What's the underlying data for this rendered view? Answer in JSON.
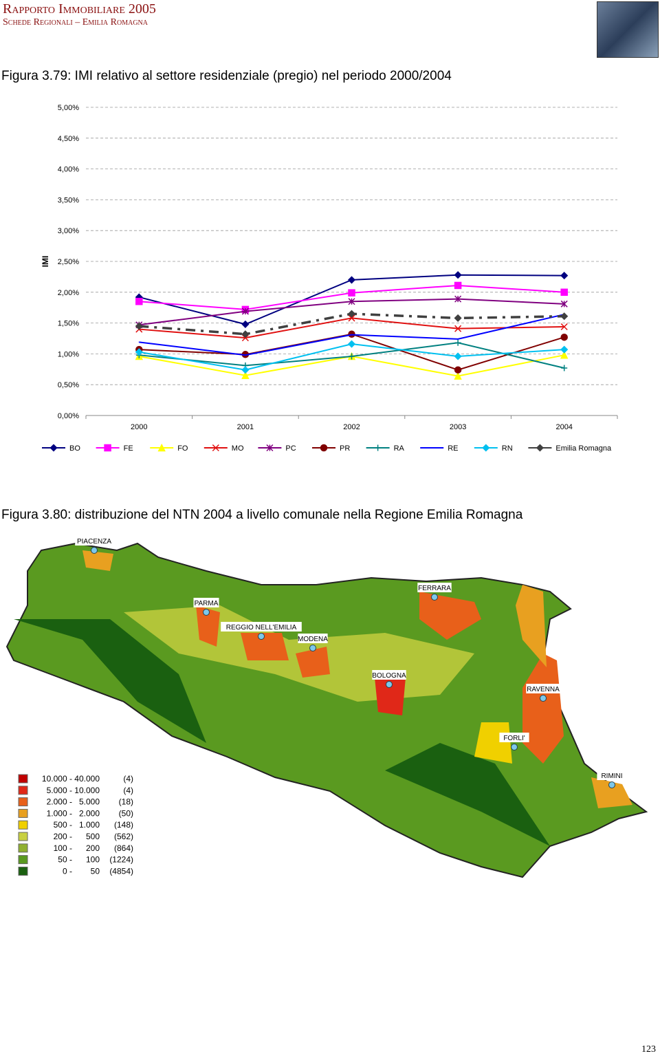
{
  "header": {
    "title": "Rapporto Immobiliare 2005",
    "subtitle": "Schede Regionali – Emilia Romagna"
  },
  "figure1": {
    "caption": "Figura 3.79: IMI relativo al settore residenziale (pregio) nel periodo 2000/2004"
  },
  "chart_data": {
    "type": "line",
    "y_label": "IMI",
    "categories": [
      "2000",
      "2001",
      "2002",
      "2003",
      "2004"
    ],
    "ylim": [
      0,
      5
    ],
    "yticks": [
      {
        "value": 0,
        "label": "0,00%"
      },
      {
        "value": 0.5,
        "label": "0,50%"
      },
      {
        "value": 1,
        "label": "1,00%"
      },
      {
        "value": 1.5,
        "label": "1,50%"
      },
      {
        "value": 2,
        "label": "2,00%"
      },
      {
        "value": 2.5,
        "label": "2,50%"
      },
      {
        "value": 3,
        "label": "3,00%"
      },
      {
        "value": 3.5,
        "label": "3,50%"
      },
      {
        "value": 4,
        "label": "4,00%"
      },
      {
        "value": 4.5,
        "label": "4,50%"
      },
      {
        "value": 5,
        "label": "5,00%"
      }
    ],
    "grid": true,
    "series": [
      {
        "name": "BO",
        "color": "#000080",
        "marker": "diamond",
        "values": [
          1.92,
          1.48,
          2.2,
          2.28,
          2.27
        ]
      },
      {
        "name": "FE",
        "color": "#ff00ff",
        "marker": "square",
        "values": [
          1.85,
          1.72,
          1.99,
          2.11,
          2.0
        ]
      },
      {
        "name": "FO",
        "color": "#ffff00",
        "marker": "triangle",
        "values": [
          0.96,
          0.65,
          0.96,
          0.64,
          0.98
        ]
      },
      {
        "name": "MO",
        "color": "#e01010",
        "marker": "x",
        "values": [
          1.4,
          1.26,
          1.58,
          1.41,
          1.44
        ]
      },
      {
        "name": "PC",
        "color": "#800080",
        "marker": "star",
        "values": [
          1.47,
          1.69,
          1.85,
          1.89,
          1.81
        ]
      },
      {
        "name": "PR",
        "color": "#800000",
        "marker": "circle",
        "values": [
          1.07,
          0.99,
          1.32,
          0.74,
          1.27
        ]
      },
      {
        "name": "RA",
        "color": "#008080",
        "marker": "plus",
        "values": [
          0.98,
          0.81,
          0.96,
          1.18,
          0.77
        ]
      },
      {
        "name": "RE",
        "color": "#0000ff",
        "marker": "none",
        "values": [
          1.19,
          0.98,
          1.31,
          1.24,
          1.64
        ]
      },
      {
        "name": "RN",
        "color": "#00c0f0",
        "marker": "diamond",
        "values": [
          1.03,
          0.74,
          1.16,
          0.96,
          1.07
        ]
      },
      {
        "name": "Emilia Romagna",
        "color": "#404040",
        "marker": "diamond",
        "dashed": true,
        "values": [
          1.45,
          1.32,
          1.65,
          1.58,
          1.61
        ]
      }
    ]
  },
  "figure2": {
    "caption": "Figura 3.80: distribuzione del NTN 2004 a livello comunale nella Regione Emilia Romagna",
    "cities": [
      "PIACENZA",
      "PARMA",
      "REGGIO NELL'EMILIA",
      "MODENA",
      "BOLOGNA",
      "FERRARA",
      "RAVENNA",
      "FORLI'",
      "RIMINI"
    ],
    "legend": [
      {
        "range": "10.000 - 40.000",
        "count": "(4)",
        "color": "#c00000"
      },
      {
        "range": "5.000 - 10.000",
        "count": "(4)",
        "color": "#e02818"
      },
      {
        "range": "2.000 -   5.000",
        "count": "(18)",
        "color": "#e8601a"
      },
      {
        "range": "1.000 -   2.000",
        "count": "(50)",
        "color": "#e8a020"
      },
      {
        "range": "500 -   1.000",
        "count": "(148)",
        "color": "#f0d000"
      },
      {
        "range": "200 -      500",
        "count": "(562)",
        "color": "#c8d040"
      },
      {
        "range": "100 -      200",
        "count": "(864)",
        "color": "#90b030"
      },
      {
        "range": "50 -      100",
        "count": "(1224)",
        "color": "#5a9a20"
      },
      {
        "range": "0 -        50",
        "count": "(4854)",
        "color": "#1a6010"
      }
    ]
  },
  "page_number": "123"
}
